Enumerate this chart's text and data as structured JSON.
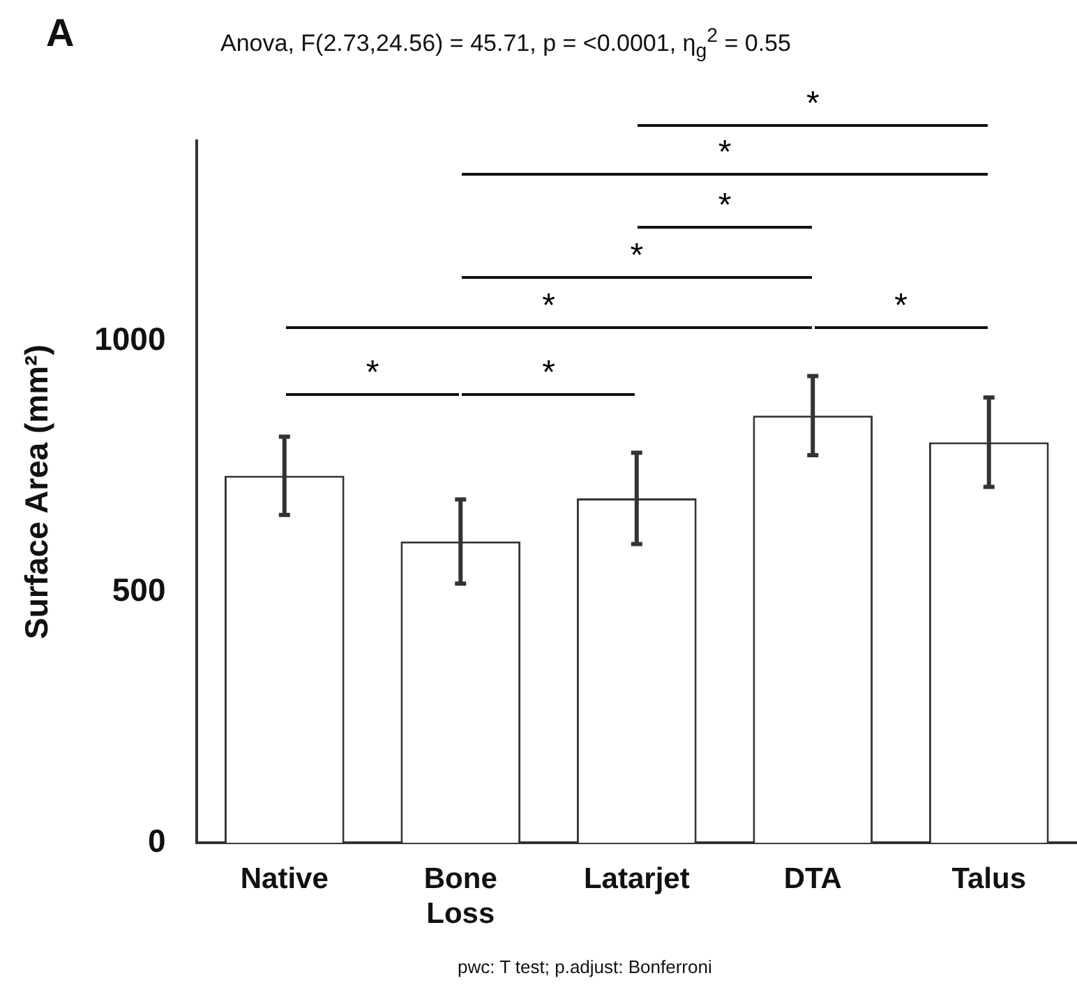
{
  "chart_data": {
    "type": "bar",
    "title": "Anova, F(2.73,24.56) = 45.71, p = <0.0001, η$_{g}$$^{2}$ = 0.55",
    "ylabel": "Surface Area (mm²)",
    "categories": [
      "Native",
      "Bone Loss",
      "Latarjet",
      "DTA",
      "Talus"
    ],
    "values": [
      732,
      601,
      687,
      852,
      799
    ],
    "errors": [
      78,
      84,
      91,
      79,
      89
    ],
    "color": "#ffffff",
    "ylim": [
      0,
      1400
    ],
    "yticks": [
      0,
      500,
      1000
    ],
    "grid": false,
    "legend": false,
    "annotations": [
      "A",
      "*",
      "*",
      "*",
      "*",
      "*",
      "*",
      "*",
      "*",
      "pwc: T test; p.adjust: Bonferroni"
    ]
  }
}
